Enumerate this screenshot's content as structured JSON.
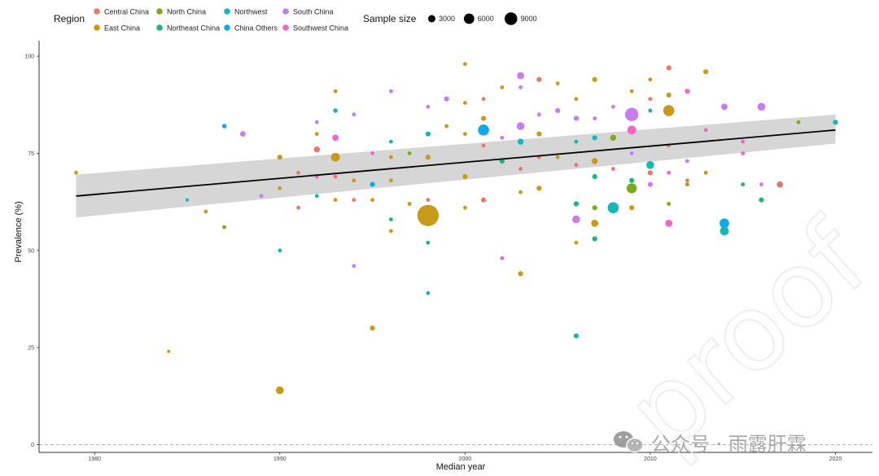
{
  "chart_data": {
    "type": "scatter",
    "xlabel": "Median year",
    "ylabel": "Prevalence (%)",
    "xlim": [
      1977,
      2022
    ],
    "ylim": [
      -2,
      104
    ],
    "x_ticks": [
      1980,
      1990,
      2000,
      2010,
      2020
    ],
    "y_ticks": [
      0,
      25,
      50,
      75,
      100
    ],
    "y_tick_labels": [
      "0",
      "25",
      "50",
      "75",
      "100"
    ],
    "zero_reference_line": {
      "y": 0,
      "style": "dashed"
    },
    "grid": false,
    "legend": {
      "region": {
        "title": "Region",
        "placement": "top",
        "entries": [
          {
            "name": "Central China",
            "color": "#E8786E"
          },
          {
            "name": "East China",
            "color": "#C89A1A"
          },
          {
            "name": "North China",
            "color": "#7BAA1F"
          },
          {
            "name": "Northeast China",
            "color": "#1FB47A"
          },
          {
            "name": "Northwest",
            "color": "#16B5B8"
          },
          {
            "name": "China Others",
            "color": "#15A8E8"
          },
          {
            "name": "South China",
            "color": "#C77CF0"
          },
          {
            "name": "Southwest China",
            "color": "#F266CC"
          }
        ]
      },
      "size": {
        "title": "Sample size",
        "entries": [
          {
            "label": "3000",
            "value": 3000
          },
          {
            "label": "6000",
            "value": 6000
          },
          {
            "label": "9000",
            "value": 9000
          }
        ]
      }
    },
    "trend_line": {
      "x": [
        1979,
        2020
      ],
      "y": [
        64,
        81
      ],
      "ci_lower": [
        58.5,
        77.5
      ],
      "ci_upper": [
        69.5,
        85.0
      ]
    },
    "points": [
      {
        "x": 1979,
        "y": 70,
        "region": "East China",
        "size": 300
      },
      {
        "x": 1984,
        "y": 24,
        "region": "East China",
        "size": 200
      },
      {
        "x": 1985,
        "y": 63,
        "region": "Northwest",
        "size": 200
      },
      {
        "x": 1986,
        "y": 60,
        "region": "East China",
        "size": 300
      },
      {
        "x": 1987,
        "y": 82,
        "region": "China Others",
        "size": 400
      },
      {
        "x": 1987,
        "y": 56,
        "region": "North China",
        "size": 300
      },
      {
        "x": 1988,
        "y": 80,
        "region": "South China",
        "size": 600
      },
      {
        "x": 1989,
        "y": 64,
        "region": "South China",
        "size": 300
      },
      {
        "x": 1990,
        "y": 74,
        "region": "East China",
        "size": 500
      },
      {
        "x": 1990,
        "y": 66,
        "region": "East China",
        "size": 300
      },
      {
        "x": 1990,
        "y": 50,
        "region": "Northwest",
        "size": 300
      },
      {
        "x": 1990,
        "y": 14,
        "region": "East China",
        "size": 1200
      },
      {
        "x": 1991,
        "y": 70,
        "region": "Central China",
        "size": 300
      },
      {
        "x": 1991,
        "y": 61,
        "region": "Central China",
        "size": 300
      },
      {
        "x": 1992,
        "y": 83,
        "region": "South China",
        "size": 300
      },
      {
        "x": 1992,
        "y": 80,
        "region": "East China",
        "size": 300
      },
      {
        "x": 1992,
        "y": 76,
        "region": "Central China",
        "size": 700
      },
      {
        "x": 1992,
        "y": 69,
        "region": "Southwest China",
        "size": 300
      },
      {
        "x": 1992,
        "y": 64,
        "region": "Northwest",
        "size": 300
      },
      {
        "x": 1993,
        "y": 91,
        "region": "East China",
        "size": 300
      },
      {
        "x": 1993,
        "y": 86,
        "region": "Northwest",
        "size": 400
      },
      {
        "x": 1993,
        "y": 79,
        "region": "Southwest China",
        "size": 800
      },
      {
        "x": 1993,
        "y": 74,
        "region": "East China",
        "size": 1500
      },
      {
        "x": 1993,
        "y": 69,
        "region": "Central China",
        "size": 300
      },
      {
        "x": 1993,
        "y": 63,
        "region": "East China",
        "size": 300
      },
      {
        "x": 1994,
        "y": 85,
        "region": "South China",
        "size": 300
      },
      {
        "x": 1994,
        "y": 68,
        "region": "East China",
        "size": 300
      },
      {
        "x": 1994,
        "y": 63,
        "region": "Central China",
        "size": 300
      },
      {
        "x": 1994,
        "y": 46,
        "region": "South China",
        "size": 300
      },
      {
        "x": 1995,
        "y": 75,
        "region": "Southwest China",
        "size": 300
      },
      {
        "x": 1995,
        "y": 67,
        "region": "China Others",
        "size": 500
      },
      {
        "x": 1995,
        "y": 63,
        "region": "East China",
        "size": 300
      },
      {
        "x": 1995,
        "y": 30,
        "region": "East China",
        "size": 500
      },
      {
        "x": 1996,
        "y": 91,
        "region": "South China",
        "size": 300
      },
      {
        "x": 1996,
        "y": 78,
        "region": "Northwest",
        "size": 300
      },
      {
        "x": 1996,
        "y": 74,
        "region": "East China",
        "size": 300
      },
      {
        "x": 1996,
        "y": 68,
        "region": "East China",
        "size": 300
      },
      {
        "x": 1996,
        "y": 58,
        "region": "Northeast China",
        "size": 300
      },
      {
        "x": 1996,
        "y": 55,
        "region": "East China",
        "size": 300
      },
      {
        "x": 1997,
        "y": 75,
        "region": "North China",
        "size": 300
      },
      {
        "x": 1997,
        "y": 62,
        "region": "East China",
        "size": 300
      },
      {
        "x": 1998,
        "y": 87,
        "region": "South China",
        "size": 300
      },
      {
        "x": 1998,
        "y": 80,
        "region": "Northwest",
        "size": 500
      },
      {
        "x": 1998,
        "y": 74,
        "region": "East China",
        "size": 500
      },
      {
        "x": 1998,
        "y": 63,
        "region": "Central China",
        "size": 300
      },
      {
        "x": 1998,
        "y": 59,
        "region": "East China",
        "size": 9000
      },
      {
        "x": 1998,
        "y": 52,
        "region": "Northeast China",
        "size": 300
      },
      {
        "x": 1998,
        "y": 39,
        "region": "China Others",
        "size": 300
      },
      {
        "x": 1999,
        "y": 89,
        "region": "South China",
        "size": 500
      },
      {
        "x": 1999,
        "y": 82,
        "region": "East China",
        "size": 300
      },
      {
        "x": 2000,
        "y": 98,
        "region": "East China",
        "size": 300
      },
      {
        "x": 2000,
        "y": 88,
        "region": "East China",
        "size": 300
      },
      {
        "x": 2000,
        "y": 80,
        "region": "East China",
        "size": 300
      },
      {
        "x": 2000,
        "y": 69,
        "region": "East China",
        "size": 500
      },
      {
        "x": 2000,
        "y": 61,
        "region": "East China",
        "size": 300
      },
      {
        "x": 2001,
        "y": 89,
        "region": "Central China",
        "size": 300
      },
      {
        "x": 2001,
        "y": 84,
        "region": "East China",
        "size": 500
      },
      {
        "x": 2001,
        "y": 81,
        "region": "China Others",
        "size": 2400
      },
      {
        "x": 2001,
        "y": 77,
        "region": "Central China",
        "size": 300
      },
      {
        "x": 2001,
        "y": 63,
        "region": "Central China",
        "size": 500
      },
      {
        "x": 2002,
        "y": 92,
        "region": "East China",
        "size": 300
      },
      {
        "x": 2002,
        "y": 79,
        "region": "South China",
        "size": 300
      },
      {
        "x": 2002,
        "y": 73,
        "region": "Northeast China",
        "size": 500
      },
      {
        "x": 2002,
        "y": 48,
        "region": "Southwest China",
        "size": 300
      },
      {
        "x": 2003,
        "y": 95,
        "region": "South China",
        "size": 1000
      },
      {
        "x": 2003,
        "y": 92,
        "region": "South China",
        "size": 300
      },
      {
        "x": 2003,
        "y": 82,
        "region": "South China",
        "size": 1200
      },
      {
        "x": 2003,
        "y": 78,
        "region": "Northwest",
        "size": 700
      },
      {
        "x": 2003,
        "y": 71,
        "region": "Central China",
        "size": 300
      },
      {
        "x": 2003,
        "y": 65,
        "region": "East China",
        "size": 300
      },
      {
        "x": 2003,
        "y": 44,
        "region": "East China",
        "size": 500
      },
      {
        "x": 2004,
        "y": 94,
        "region": "Central China",
        "size": 500
      },
      {
        "x": 2004,
        "y": 85,
        "region": "South China",
        "size": 300
      },
      {
        "x": 2004,
        "y": 80,
        "region": "East China",
        "size": 500
      },
      {
        "x": 2004,
        "y": 74,
        "region": "Central China",
        "size": 300
      },
      {
        "x": 2004,
        "y": 66,
        "region": "East China",
        "size": 500
      },
      {
        "x": 2005,
        "y": 93,
        "region": "East China",
        "size": 300
      },
      {
        "x": 2005,
        "y": 86,
        "region": "South China",
        "size": 500
      },
      {
        "x": 2005,
        "y": 74,
        "region": "East China",
        "size": 300
      },
      {
        "x": 2006,
        "y": 89,
        "region": "East China",
        "size": 300
      },
      {
        "x": 2006,
        "y": 84,
        "region": "South China",
        "size": 500
      },
      {
        "x": 2006,
        "y": 78,
        "region": "Northwest",
        "size": 300
      },
      {
        "x": 2006,
        "y": 72,
        "region": "Central China",
        "size": 300
      },
      {
        "x": 2006,
        "y": 62,
        "region": "Northeast China",
        "size": 500
      },
      {
        "x": 2006,
        "y": 58,
        "region": "South China",
        "size": 1200
      },
      {
        "x": 2006,
        "y": 52,
        "region": "East China",
        "size": 300
      },
      {
        "x": 2006,
        "y": 28,
        "region": "Northwest",
        "size": 500
      },
      {
        "x": 2007,
        "y": 94,
        "region": "East China",
        "size": 500
      },
      {
        "x": 2007,
        "y": 84,
        "region": "South China",
        "size": 300
      },
      {
        "x": 2007,
        "y": 79,
        "region": "Northwest",
        "size": 500
      },
      {
        "x": 2007,
        "y": 73,
        "region": "East China",
        "size": 700
      },
      {
        "x": 2007,
        "y": 69,
        "region": "Northeast China",
        "size": 500
      },
      {
        "x": 2007,
        "y": 61,
        "region": "North China",
        "size": 500
      },
      {
        "x": 2007,
        "y": 57,
        "region": "East China",
        "size": 1000
      },
      {
        "x": 2007,
        "y": 53,
        "region": "Northeast China",
        "size": 500
      },
      {
        "x": 2008,
        "y": 87,
        "region": "South China",
        "size": 300
      },
      {
        "x": 2008,
        "y": 79,
        "region": "North China",
        "size": 700
      },
      {
        "x": 2008,
        "y": 71,
        "region": "Central China",
        "size": 300
      },
      {
        "x": 2008,
        "y": 61,
        "region": "Northwest",
        "size": 2400
      },
      {
        "x": 2009,
        "y": 91,
        "region": "East China",
        "size": 300
      },
      {
        "x": 2009,
        "y": 85,
        "region": "South China",
        "size": 3500
      },
      {
        "x": 2009,
        "y": 81,
        "region": "Southwest China",
        "size": 1500
      },
      {
        "x": 2009,
        "y": 75,
        "region": "South China",
        "size": 300
      },
      {
        "x": 2009,
        "y": 68,
        "region": "Northeast China",
        "size": 500
      },
      {
        "x": 2009,
        "y": 66,
        "region": "North China",
        "size": 2000
      },
      {
        "x": 2009,
        "y": 61,
        "region": "East China",
        "size": 500
      },
      {
        "x": 2010,
        "y": 94,
        "region": "East China",
        "size": 300
      },
      {
        "x": 2010,
        "y": 89,
        "region": "Central China",
        "size": 300
      },
      {
        "x": 2010,
        "y": 86,
        "region": "Northeast China",
        "size": 300
      },
      {
        "x": 2010,
        "y": 72,
        "region": "Northwest",
        "size": 1200
      },
      {
        "x": 2010,
        "y": 70,
        "region": "Central China",
        "size": 500
      },
      {
        "x": 2010,
        "y": 67,
        "region": "South China",
        "size": 500
      },
      {
        "x": 2011,
        "y": 97,
        "region": "Central China",
        "size": 500
      },
      {
        "x": 2011,
        "y": 90,
        "region": "East China",
        "size": 500
      },
      {
        "x": 2011,
        "y": 86,
        "region": "East China",
        "size": 2400
      },
      {
        "x": 2011,
        "y": 77,
        "region": "Central China",
        "size": 300
      },
      {
        "x": 2011,
        "y": 70,
        "region": "Southwest China",
        "size": 300
      },
      {
        "x": 2011,
        "y": 62,
        "region": "North China",
        "size": 300
      },
      {
        "x": 2011,
        "y": 57,
        "region": "Southwest China",
        "size": 1000
      },
      {
        "x": 2012,
        "y": 91,
        "region": "Southwest China",
        "size": 500
      },
      {
        "x": 2012,
        "y": 73,
        "region": "South China",
        "size": 300
      },
      {
        "x": 2012,
        "y": 68,
        "region": "Central China",
        "size": 300
      },
      {
        "x": 2012,
        "y": 67,
        "region": "North China",
        "size": 300
      },
      {
        "x": 2013,
        "y": 96,
        "region": "East China",
        "size": 500
      },
      {
        "x": 2013,
        "y": 81,
        "region": "Southwest China",
        "size": 300
      },
      {
        "x": 2013,
        "y": 70,
        "region": "East China",
        "size": 300
      },
      {
        "x": 2014,
        "y": 57,
        "region": "China Others",
        "size": 1800
      },
      {
        "x": 2014,
        "y": 55,
        "region": "Northwest",
        "size": 1500
      },
      {
        "x": 2014,
        "y": 87,
        "region": "South China",
        "size": 800
      },
      {
        "x": 2015,
        "y": 78,
        "region": "Southwest China",
        "size": 300
      },
      {
        "x": 2015,
        "y": 75,
        "region": "Southwest China",
        "size": 300
      },
      {
        "x": 2015,
        "y": 67,
        "region": "Northeast China",
        "size": 300
      },
      {
        "x": 2016,
        "y": 87,
        "region": "South China",
        "size": 1200
      },
      {
        "x": 2016,
        "y": 67,
        "region": "South China",
        "size": 300
      },
      {
        "x": 2016,
        "y": 63,
        "region": "Northeast China",
        "size": 500
      },
      {
        "x": 2017,
        "y": 67,
        "region": "Central China",
        "size": 800
      },
      {
        "x": 2018,
        "y": 83,
        "region": "North China",
        "size": 300
      },
      {
        "x": 2020,
        "y": 83,
        "region": "Northwest",
        "size": 500
      }
    ]
  },
  "watermark": {
    "icon": "wechat-icon",
    "text": "公众号 · 雨露肝霖",
    "background_mark": "proof",
    "color": "#9a9a9a"
  }
}
